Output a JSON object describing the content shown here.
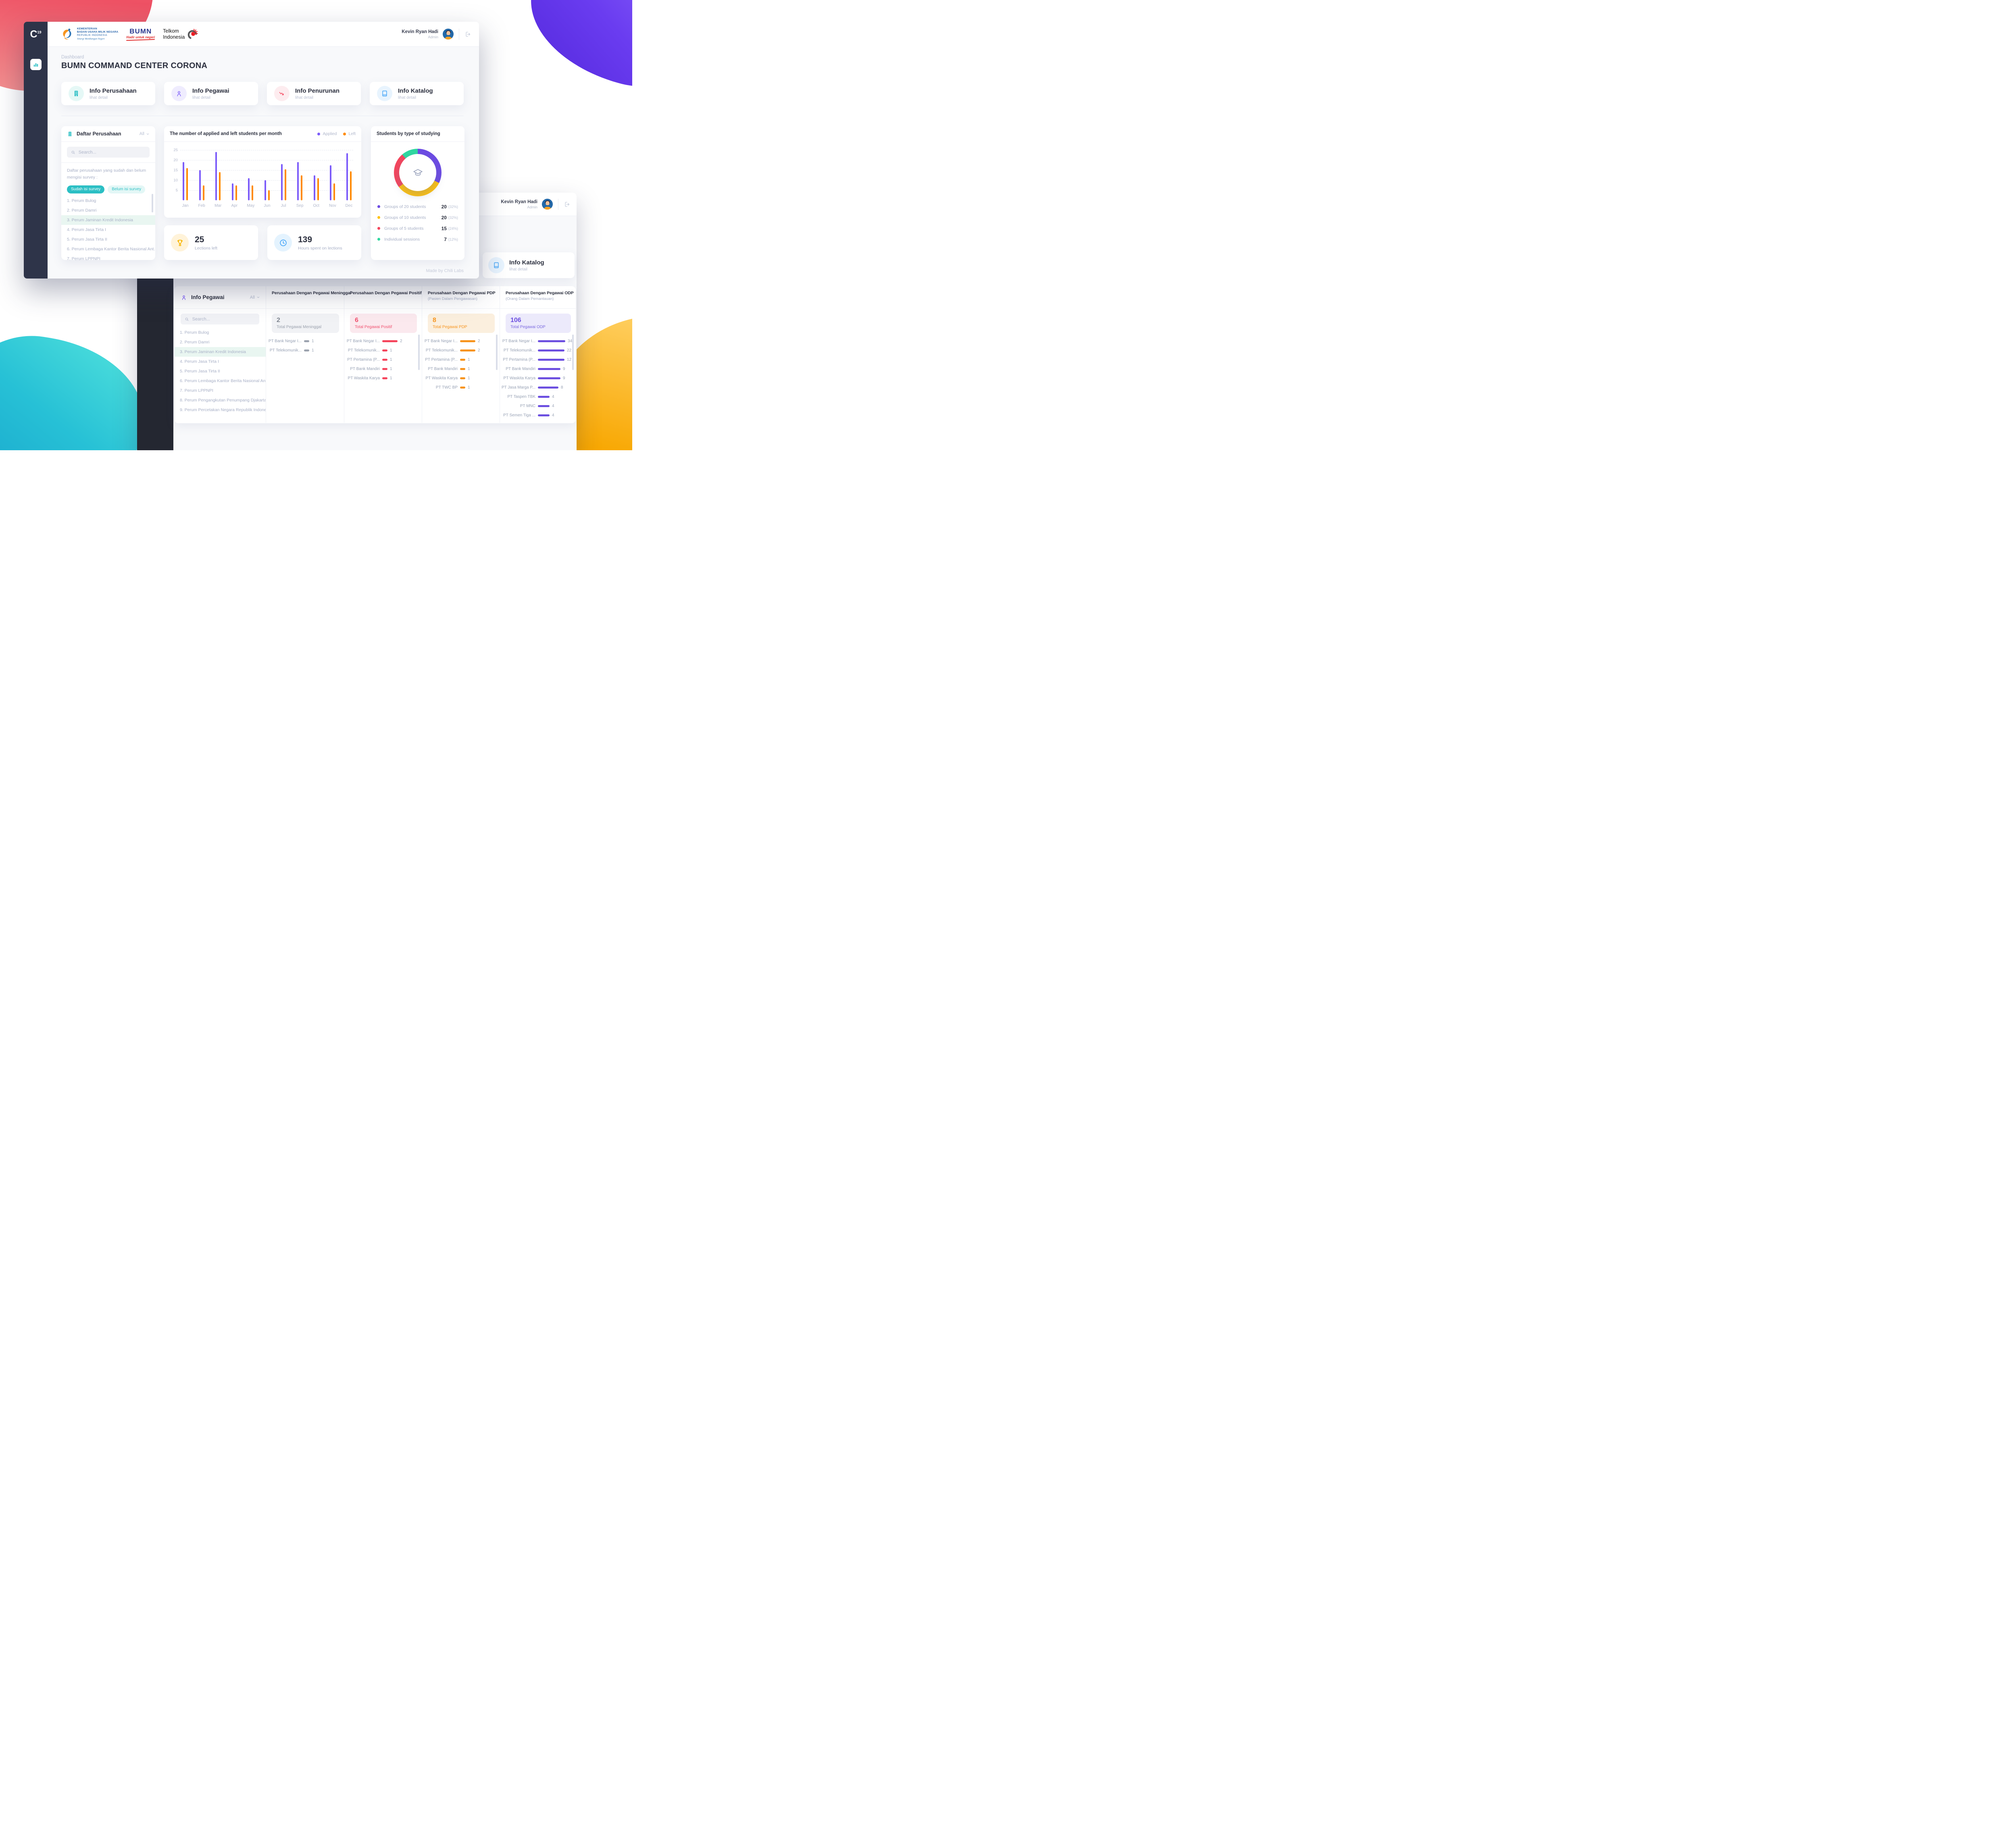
{
  "theme": {
    "accent_teal": "#2bbfc4",
    "purple": "#7c5cfa",
    "orange": "#ff8a00",
    "red": "#f5455c",
    "blue": "#3fa2f7",
    "yellow": "#f7b500",
    "green": "#2fd8a0"
  },
  "window1": {
    "sidebar": {
      "logo_main": "C",
      "logo_sub": "19"
    },
    "header": {
      "kementerian": {
        "line1": "KEMENTERIAN",
        "line2": "BADAN USAHA MILIK NEGARA",
        "line3": "REPUBLIK INDONESIA",
        "tagline": "Sinergi Membangun Negeri"
      },
      "bumn": {
        "text": "BUMN",
        "tagline": "Hadir untuk negeri"
      },
      "telkom": {
        "line1": "Telkom",
        "line2": "Indonesia"
      },
      "user": {
        "name": "Kevin Ryan Hadi",
        "role": "Admin"
      }
    },
    "breadcrumb": "Dashboard",
    "title": "BUMN COMMAND CENTER CORONA",
    "info_cards": [
      {
        "title": "Info Perusahaan",
        "subtitle": "lihat detail",
        "icon": "building",
        "icon_bg": "#e5f8f6",
        "icon_color": "#2bbfc4"
      },
      {
        "title": "Info Pegawai",
        "subtitle": "lihat detail",
        "icon": "person",
        "icon_bg": "#efecfe",
        "icon_color": "#7c5cfa"
      },
      {
        "title": "Info Penurunan",
        "subtitle": "lihat detail",
        "icon": "decline",
        "icon_bg": "#fdecef",
        "icon_color": "#f5455c"
      },
      {
        "title": "Info Katalog",
        "subtitle": "lihat detail",
        "icon": "book",
        "icon_bg": "#e8f4fe",
        "icon_color": "#3fa2f7"
      }
    ],
    "daftar_perusahaan": {
      "title": "Daftar Perusahaan",
      "filter": "All",
      "search_placeholder": "Search...",
      "description": "Daftar perusahaan yang sudah dan belum mengisi survey :",
      "chips": [
        {
          "label": "Sudah isi survey",
          "active": true
        },
        {
          "label": "Belum isi survey",
          "active": false
        }
      ],
      "selected_index": 2,
      "companies": [
        "1. Perum Bulog",
        "2. Perum Damri",
        "3. Perum Jaminan Kredit Indonesia",
        "4. Perum Jasa Tirta I",
        "5. Perum Jasa Tirta II",
        "6. Perum Lembaga Kantor Berita Nasional Ant...",
        "7. Perum LPPNPI"
      ]
    },
    "stats": [
      {
        "value": "25",
        "label": "Lections left",
        "icon": "trophy",
        "icon_bg": "#fff3d9",
        "icon_color": "#f7b500"
      },
      {
        "value": "139",
        "label": "Hours spent on lections",
        "icon": "clock",
        "icon_bg": "#e4f3fe",
        "icon_color": "#3fa2f7"
      }
    ],
    "credit": "Made by Chili Labs"
  },
  "chart_data": [
    {
      "type": "bar",
      "title": "The number of applied and left students per month",
      "categories": [
        "Jan",
        "Feb",
        "Mar",
        "Apr",
        "May",
        "Jun",
        "Jul",
        "Sep",
        "Oct",
        "Nov",
        "Dec"
      ],
      "series": [
        {
          "name": "Applied",
          "color": "#7c5cfa",
          "values": [
            19,
            15,
            24,
            8.5,
            11,
            10,
            18,
            19,
            12.5,
            17.5,
            23.5
          ]
        },
        {
          "name": "Left",
          "color": "#ff8a00",
          "values": [
            16,
            7.5,
            14,
            7.5,
            7.5,
            5,
            15.5,
            12.5,
            11,
            8.5,
            14.5
          ]
        }
      ],
      "xlabel": "",
      "ylabel": "",
      "ylim": [
        0,
        25
      ],
      "yticks": [
        5,
        10,
        15,
        20,
        25
      ],
      "grid": true,
      "legend_position": "top-right"
    },
    {
      "type": "pie",
      "title": "Students by type of studying",
      "segments": [
        {
          "label": "Groups of 20 students",
          "value": 20,
          "pct": "(32%)",
          "color": "#6c4be3"
        },
        {
          "label": "Groups of 10 students",
          "value": 20,
          "pct": "(32%)",
          "color": "#ffc20e"
        },
        {
          "label": "Groups of 5 students",
          "value": 15,
          "pct": "(24%)",
          "color": "#f5455c"
        },
        {
          "label": "Individual sessions",
          "value": 7,
          "pct": "(12%)",
          "color": "#2fd8a0"
        }
      ]
    }
  ],
  "window2": {
    "user": {
      "name": "Kevin Ryan Hadi",
      "role": "Admin"
    },
    "info_katalog": {
      "title": "Info Katalog",
      "subtitle": "lihat detail",
      "icon_bg": "#e8f4fe",
      "icon_color": "#3fa2f7"
    },
    "info_pegawai": {
      "title": "Info Pegawai",
      "filter": "All",
      "search_placeholder": "Search...",
      "selected_index": 2,
      "companies": [
        "1. Perum Bulog",
        "2. Perum Damri",
        "3. Perum Jaminan Kredit Indonesia",
        "4. Perum Jasa Tirta I",
        "5. Perum Jasa Tirta II",
        "6. Perum Lembaga Kantor Berita Nasional Ant...",
        "7. Perum LPPNPI",
        "8. Perum Pengangkutan Penumpang Djakarta",
        "9. Perum Percetakan Negara Republik Indonesia"
      ]
    },
    "columns": [
      {
        "title": "Perusahaan Dengan Pegawai Meninggal",
        "subtitle": "",
        "total": "2",
        "total_label": "Total Pegawai Meninggal",
        "box_bg": "#f1f2f5",
        "num_color": "#7e848f",
        "label_color": "#99a0ac",
        "bar_color": "#9ca3af",
        "scrollbar": false,
        "rows": [
          {
            "name": "PT Bank Negar I...",
            "value": "1",
            "bar": 13
          },
          {
            "name": "PT Telekomunik...",
            "value": "1",
            "bar": 13
          }
        ]
      },
      {
        "title": "Perusahaan Dengan Pegawai Positif",
        "subtitle": "",
        "total": "6",
        "total_label": "Total Pegawai Positif",
        "box_bg": "#fbe9ee",
        "num_color": "#f0506e",
        "label_color": "#f0506e",
        "bar_color": "#f5455c",
        "scrollbar": true,
        "rows": [
          {
            "name": "PT Bank Negar I...",
            "value": "2",
            "bar": 38
          },
          {
            "name": "PT Telekomunik...",
            "value": "1",
            "bar": 13
          },
          {
            "name": "PT Pertamina (P...",
            "value": "1",
            "bar": 13
          },
          {
            "name": "PT  Bank Mandiri",
            "value": "1",
            "bar": 13
          },
          {
            "name": "PT Waskita Karya",
            "value": "1",
            "bar": 13
          }
        ]
      },
      {
        "title": "Perusahaan Dengan Pegawai PDP",
        "subtitle": "(Pasien Dalam Pengawasan)",
        "total": "8",
        "total_label": "Total Pegawai PDP",
        "box_bg": "#fbefde",
        "num_color": "#f7941d",
        "label_color": "#f7941d",
        "bar_color": "#f7941d",
        "scrollbar": true,
        "rows": [
          {
            "name": "PT Bank Negar I...",
            "value": "2",
            "bar": 38
          },
          {
            "name": "PT Telekomunik...",
            "value": "2",
            "bar": 38
          },
          {
            "name": "PT Pertamina (P...",
            "value": "1",
            "bar": 13
          },
          {
            "name": "PT  Bank Mandiri",
            "value": "1",
            "bar": 13
          },
          {
            "name": "PT Waskita Karya",
            "value": "1",
            "bar": 13
          },
          {
            "name": "PT TWC BP",
            "value": "1",
            "bar": 13
          }
        ]
      },
      {
        "title": "Perusahaan Dengan Pegawai ODP",
        "subtitle": "(Orang Dalam Pemantauan)",
        "total": "106",
        "total_label": "Total Pegawai ODP",
        "box_bg": "#eceafb",
        "num_color": "#6c4fe0",
        "label_color": "#7a68e0",
        "bar_color": "#6c4fe0",
        "scrollbar": true,
        "rows": [
          {
            "name": "PT Bank Negar I...",
            "value": "34",
            "bar": 68
          },
          {
            "name": "PT Telekomunik...",
            "value": "22",
            "bar": 66
          },
          {
            "name": "PT Pertamina (P...",
            "value": "12",
            "bar": 66
          },
          {
            "name": "PT  Bank Mandiri",
            "value": "9",
            "bar": 56
          },
          {
            "name": "PT Waskita Karya",
            "value": "9",
            "bar": 56
          },
          {
            "name": "PT Jasa Marga P...",
            "value": "8",
            "bar": 51
          },
          {
            "name": "PT Taspen TBK",
            "value": "4",
            "bar": 29
          },
          {
            "name": "PT MNC",
            "value": "4",
            "bar": 29
          },
          {
            "name": "PT Semen Tiga ...",
            "value": "4",
            "bar": 29
          }
        ]
      }
    ]
  }
}
